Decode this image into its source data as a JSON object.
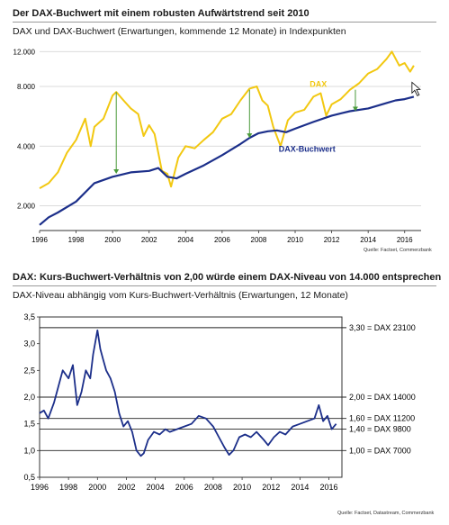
{
  "colors": {
    "dax": "#f2c811",
    "book": "#1c2f8a",
    "ratio": "#1c2f8a",
    "arrow": "#4a9a3a",
    "grid": "#222222"
  },
  "chart_data": [
    {
      "type": "line",
      "title": "Der DAX-Buchwert mit einem robusten Aufwärtstrend seit 2010",
      "subtitle": "DAX und DAX-Buchwert (Erwartungen, kommende 12 Monate) in Indexpunkten",
      "source": "Quelle: Factset, Commerzbank",
      "log_scale": true,
      "ylim": [
        1500,
        13500
      ],
      "xlim": [
        1996,
        2016.9
      ],
      "y_ticks": [
        2000,
        4000,
        8000,
        12000
      ],
      "y_tick_labels": [
        "2.000",
        "4.000",
        "8.000",
        "12.000"
      ],
      "x_ticks": [
        1996,
        1998,
        2000,
        2002,
        2004,
        2006,
        2008,
        2010,
        2012,
        2014,
        2016
      ],
      "grid": true,
      "series": [
        {
          "name": "DAX",
          "x": [
            1996.0,
            1996.5,
            1997.0,
            1997.5,
            1998.0,
            1998.5,
            1998.8,
            1999.0,
            1999.5,
            2000.0,
            2000.2,
            2000.6,
            2001.0,
            2001.4,
            2001.7,
            2002.0,
            2002.3,
            2002.7,
            2003.0,
            2003.2,
            2003.6,
            2004.0,
            2004.5,
            2005.0,
            2005.5,
            2006.0,
            2006.5,
            2007.0,
            2007.5,
            2007.9,
            2008.2,
            2008.5,
            2008.8,
            2009.2,
            2009.6,
            2010.0,
            2010.5,
            2011.0,
            2011.4,
            2011.7,
            2012.0,
            2012.5,
            2013.0,
            2013.5,
            2014.0,
            2014.5,
            2015.0,
            2015.3,
            2015.7,
            2016.0,
            2016.3,
            2016.5
          ],
          "values": [
            2450,
            2600,
            2950,
            3700,
            4300,
            5500,
            4000,
            5000,
            5500,
            7200,
            7500,
            6800,
            6200,
            5800,
            4500,
            5100,
            4600,
            3000,
            2900,
            2500,
            3500,
            4000,
            3900,
            4300,
            4700,
            5500,
            5800,
            6800,
            7800,
            8000,
            6800,
            6400,
            5000,
            4000,
            5400,
            5900,
            6100,
            7100,
            7400,
            5700,
            6500,
            6900,
            7700,
            8300,
            9300,
            9800,
            11000,
            12000,
            10200,
            10500,
            9500,
            10200
          ]
        },
        {
          "name": "DAX-Buchwert",
          "x": [
            1996.0,
            1996.5,
            1997.0,
            1998.0,
            1999.0,
            2000.0,
            2001.0,
            2002.0,
            2002.5,
            2003.0,
            2003.5,
            2004.0,
            2005.0,
            2006.0,
            2007.0,
            2007.5,
            2008.0,
            2008.5,
            2009.0,
            2009.5,
            2010.0,
            2011.0,
            2012.0,
            2013.0,
            2014.0,
            2015.0,
            2015.5,
            2016.0,
            2016.5
          ],
          "values": [
            1600,
            1750,
            1850,
            2100,
            2600,
            2800,
            2950,
            3000,
            3100,
            2800,
            2750,
            2900,
            3200,
            3600,
            4100,
            4400,
            4650,
            4750,
            4800,
            4700,
            4900,
            5300,
            5700,
            6000,
            6200,
            6600,
            6800,
            6900,
            7100
          ]
        }
      ],
      "annotations": [
        {
          "type": "arrow",
          "from": [
            2000.2,
            7500
          ],
          "to": [
            2000.2,
            2900
          ]
        },
        {
          "type": "arrow",
          "from": [
            2007.5,
            7700
          ],
          "to": [
            2007.5,
            4400
          ]
        },
        {
          "type": "arrow",
          "from": [
            2013.3,
            7700
          ],
          "to": [
            2013.3,
            6000
          ]
        }
      ]
    },
    {
      "type": "line",
      "title": "DAX: Kurs-Buchwert-Verhältnis von 2,00 würde einem DAX-Niveau von 14.000 entsprechen",
      "subtitle": "DAX-Niveau abhängig vom Kurs-Buchwert-Verhältnis (Erwartungen, 12 Monate)",
      "source": "Quelle: Factset, Datastream, Commerzbank",
      "ylim": [
        0.5,
        3.5
      ],
      "xlim": [
        1996,
        2016.9
      ],
      "y_ticks": [
        0.5,
        1.0,
        1.5,
        2.0,
        2.5,
        3.0,
        3.5
      ],
      "y_tick_labels": [
        "0,5",
        "1,0",
        "1,5",
        "2,0",
        "2,5",
        "3,0",
        "3,5"
      ],
      "x_ticks": [
        1996,
        1998,
        2000,
        2002,
        2004,
        2006,
        2008,
        2010,
        2012,
        2014,
        2016
      ],
      "reference_lines": [
        {
          "value": 3.3,
          "label": "3,30 = DAX 23100"
        },
        {
          "value": 2.0,
          "label": "2,00 = DAX 14000"
        },
        {
          "value": 1.6,
          "label": "1,60 = DAX 11200"
        },
        {
          "value": 1.4,
          "label": "1,40 = DAX 9800"
        },
        {
          "value": 1.0,
          "label": "1,00 = DAX 7000"
        }
      ],
      "series": [
        {
          "name": "Kurs-Buchwert-Verhältnis",
          "x": [
            1996.0,
            1996.3,
            1996.6,
            1997.0,
            1997.3,
            1997.6,
            1998.0,
            1998.3,
            1998.6,
            1998.9,
            1999.2,
            1999.5,
            1999.7,
            2000.0,
            2000.2,
            2000.4,
            2000.6,
            2000.9,
            2001.2,
            2001.5,
            2001.8,
            2002.1,
            2002.4,
            2002.7,
            2003.0,
            2003.2,
            2003.5,
            2003.9,
            2004.3,
            2004.7,
            2005.0,
            2005.5,
            2006.0,
            2006.5,
            2007.0,
            2007.5,
            2008.0,
            2008.4,
            2008.8,
            2009.1,
            2009.4,
            2009.8,
            2010.2,
            2010.6,
            2011.0,
            2011.5,
            2011.8,
            2012.2,
            2012.6,
            2013.0,
            2013.5,
            2014.0,
            2014.5,
            2015.0,
            2015.3,
            2015.6,
            2015.9,
            2016.2,
            2016.5
          ],
          "values": [
            1.7,
            1.75,
            1.6,
            1.9,
            2.2,
            2.5,
            2.35,
            2.6,
            1.85,
            2.1,
            2.5,
            2.35,
            2.8,
            3.25,
            2.9,
            2.7,
            2.5,
            2.35,
            2.1,
            1.7,
            1.45,
            1.55,
            1.35,
            1.0,
            0.9,
            0.95,
            1.2,
            1.35,
            1.3,
            1.4,
            1.35,
            1.4,
            1.45,
            1.5,
            1.65,
            1.6,
            1.45,
            1.25,
            1.05,
            0.92,
            1.0,
            1.25,
            1.3,
            1.25,
            1.35,
            1.2,
            1.1,
            1.25,
            1.35,
            1.3,
            1.45,
            1.5,
            1.55,
            1.6,
            1.85,
            1.55,
            1.65,
            1.4,
            1.5
          ]
        }
      ]
    }
  ]
}
